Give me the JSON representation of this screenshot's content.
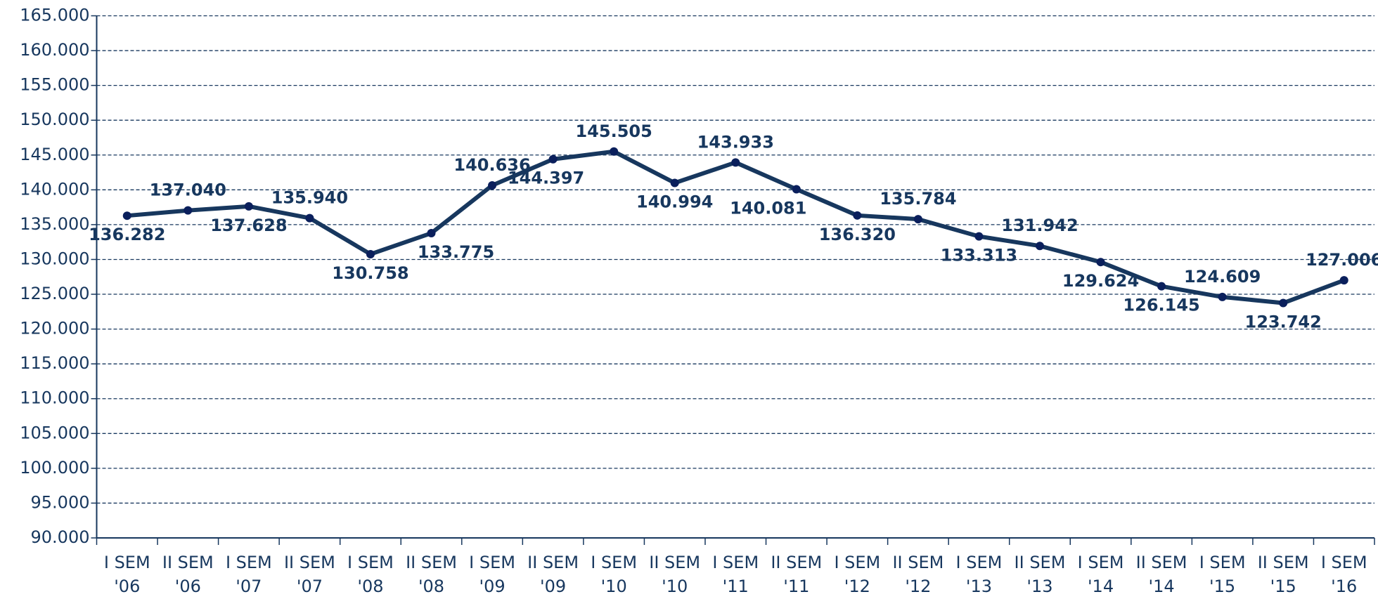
{
  "chart_data": {
    "type": "line",
    "categories": [
      "I SEM '06",
      "II SEM '06",
      "I SEM '07",
      "II SEM '07",
      "I SEM '08",
      "II SEM '08",
      "I SEM '09",
      "II SEM '09",
      "I SEM '10",
      "II SEM '10",
      "I SEM '11",
      "II SEM '11",
      "I SEM '12",
      "II SEM '12",
      "I SEM '13",
      "II SEM '13",
      "I SEM '14",
      "II SEM '14",
      "I SEM '15",
      "II SEM '15",
      "I SEM '16"
    ],
    "values": [
      136282,
      137040,
      137628,
      135940,
      130758,
      133775,
      140636,
      144397,
      145505,
      140994,
      143933,
      140081,
      136320,
      135784,
      133313,
      131942,
      129624,
      126145,
      124609,
      123742,
      127006
    ],
    "value_labels": [
      "136.282",
      "137.040",
      "137.628",
      "135.940",
      "130.758",
      "133.775",
      "140.636",
      "144.397",
      "145.505",
      "140.994",
      "143.933",
      "140.081",
      "136.320",
      "135.784",
      "133.313",
      "131.942",
      "129.624",
      "126.145",
      "124.609",
      "123.742",
      "127.006"
    ],
    "color": "#17375e",
    "marker_color": "#0a1f5c",
    "ylim": [
      90000,
      165000
    ],
    "yticks": [
      {
        "value": 90000,
        "label": "90.000"
      },
      {
        "value": 95000,
        "label": "95.000"
      },
      {
        "value": 100000,
        "label": "100.000"
      },
      {
        "value": 105000,
        "label": "105.000"
      },
      {
        "value": 110000,
        "label": "110.000"
      },
      {
        "value": 115000,
        "label": "115.000"
      },
      {
        "value": 120000,
        "label": "120.000"
      },
      {
        "value": 125000,
        "label": "125.000"
      },
      {
        "value": 130000,
        "label": "130.000"
      },
      {
        "value": 135000,
        "label": "135.000"
      },
      {
        "value": 140000,
        "label": "140.000"
      },
      {
        "value": 145000,
        "label": "145.000"
      },
      {
        "value": 150000,
        "label": "150.000"
      },
      {
        "value": 155000,
        "label": "155.000"
      },
      {
        "value": 160000,
        "label": "160.000"
      },
      {
        "value": 165000,
        "label": "165.000"
      }
    ],
    "grid": true
  }
}
